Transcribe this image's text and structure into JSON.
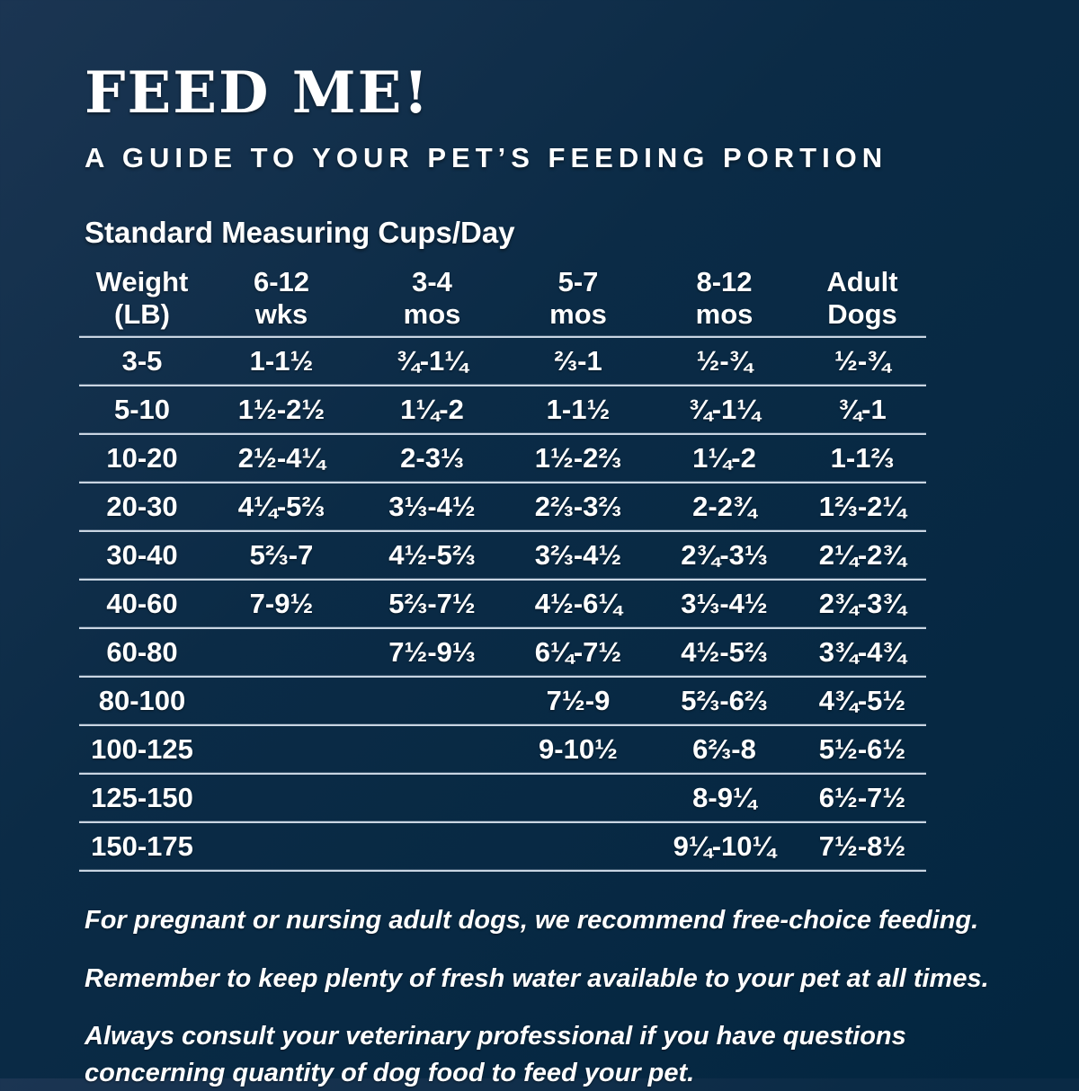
{
  "page": {
    "title": "FEED ME!",
    "subtitle": "A GUIDE TO YOUR PET’S FEEDING PORTION",
    "table_caption": "Standard Measuring Cups/Day"
  },
  "table": {
    "unit": "Standard Measuring Cups/Day",
    "headers": [
      {
        "line1": "Weight",
        "line2": "(LB)"
      },
      {
        "line1": "6-12",
        "line2": "wks"
      },
      {
        "line1": "3-4",
        "line2": "mos"
      },
      {
        "line1": "5-7",
        "line2": "mos"
      },
      {
        "line1": "8-12",
        "line2": "mos"
      },
      {
        "line1": "Adult",
        "line2": "Dogs"
      }
    ],
    "rows": [
      [
        "3-5",
        "1-1½",
        "¾-1¼",
        "⅔-1",
        "½-¾",
        "½-¾"
      ],
      [
        "5-10",
        "1½-2½",
        "1¼-2",
        "1-1½",
        "¾-1¼",
        "¾-1"
      ],
      [
        "10-20",
        "2½-4¼",
        "2-3⅓",
        "1½-2⅔",
        "1¼-2",
        "1-1⅔"
      ],
      [
        "20-30",
        "4¼-5⅔",
        "3⅓-4½",
        "2⅔-3⅔",
        "2-2¾",
        "1⅔-2¼"
      ],
      [
        "30-40",
        "5⅔-7",
        "4½-5⅔",
        "3⅔-4½",
        "2¾-3⅓",
        "2¼-2¾"
      ],
      [
        "40-60",
        "7-9½",
        "5⅔-7½",
        "4½-6¼",
        "3⅓-4½",
        "2¾-3¾"
      ],
      [
        "60-80",
        "",
        "7½-9⅓",
        "6¼-7½",
        "4½-5⅔",
        "3¾-4¾"
      ],
      [
        "80-100",
        "",
        "",
        "7½-9",
        "5⅔-6⅔",
        "4¾-5½"
      ],
      [
        "100-125",
        "",
        "",
        "9-10½",
        "6⅔-8",
        "5½-6½"
      ],
      [
        "125-150",
        "",
        "",
        "",
        "8-9¼",
        "6½-7½"
      ],
      [
        "150-175",
        "",
        "",
        "",
        "9¼-10¼",
        "7½-8½"
      ]
    ]
  },
  "footnotes": [
    "For pregnant or nursing adult dogs, we recommend free-choice feeding.",
    "Remember to keep plenty of fresh water available to your pet at all times.",
    "Always consult your veterinary professional if you have questions concerning quantity of dog food to feed your pet."
  ],
  "colors": {
    "background": "#0b2b46",
    "text": "#ffffff",
    "rule": "#c9d5e2"
  }
}
